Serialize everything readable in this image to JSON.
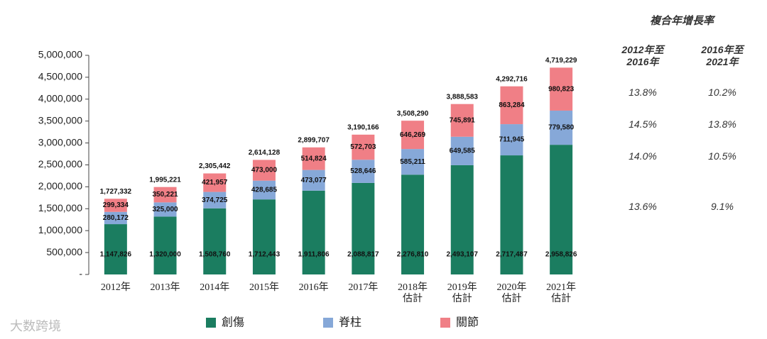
{
  "chart_data": {
    "type": "stacked_bar",
    "categories": [
      "2012年",
      "2013年",
      "2014年",
      "2015年",
      "2016年",
      "2017年",
      "2018年\n估計",
      "2019年\n估計",
      "2020年\n估計",
      "2021年\n估計"
    ],
    "series": [
      {
        "name": "創傷",
        "color": "#1b7d60",
        "values": [
          1147826,
          1320000,
          1508760,
          1712443,
          1911806,
          2088817,
          2276810,
          2493107,
          2717487,
          2958826
        ],
        "value_labels": [
          "1,147,826",
          "1,320,000",
          "1,508,760",
          "1,712,443",
          "1,911,806",
          "2,088,817",
          "2,276,810",
          "2,493,107",
          "2,717,487",
          "2,958,826"
        ]
      },
      {
        "name": "脊柱",
        "color": "#86a8d8",
        "values": [
          280172,
          325000,
          374725,
          428685,
          473077,
          528646,
          585211,
          649585,
          711945,
          779580
        ],
        "value_labels": [
          "280,172",
          "325,000",
          "374,725",
          "428,685",
          "473,077",
          "528,646",
          "585,211",
          "649,585",
          "711,945",
          "779,580"
        ]
      },
      {
        "name": "關節",
        "color": "#f07f86",
        "values": [
          299334,
          350221,
          421957,
          473000,
          514824,
          572703,
          646269,
          745891,
          863284,
          980823
        ],
        "value_labels": [
          "299,334",
          "350,221",
          "421,957",
          "473,000",
          "514,824",
          "572,703",
          "646,269",
          "745,891",
          "863,284",
          "980,823"
        ]
      }
    ],
    "total_labels": [
      "1,727,332",
      "1,995,221",
      "2,305,442",
      "2,614,128",
      "2,899,707",
      "3,190,166",
      "3,508,290",
      "3,888,583",
      "4,292,716",
      "4,719,229"
    ],
    "ylim": [
      0,
      5000000
    ],
    "yticks": [
      {
        "value": 0,
        "label": "-"
      },
      {
        "value": 500000,
        "label": "500,000"
      },
      {
        "value": 1000000,
        "label": "1,000,000"
      },
      {
        "value": 1500000,
        "label": "1,500,000"
      },
      {
        "value": 2000000,
        "label": "2,000,000"
      },
      {
        "value": 2500000,
        "label": "2,500,000"
      },
      {
        "value": 3000000,
        "label": "3,000,000"
      },
      {
        "value": 3500000,
        "label": "3,500,000"
      },
      {
        "value": 4000000,
        "label": "4,000,000"
      },
      {
        "value": 4500000,
        "label": "4,500,000"
      },
      {
        "value": 5000000,
        "label": "5,000,000"
      }
    ],
    "legend": "bottom"
  },
  "cagr_table": {
    "title": "複合年增長率",
    "columns": [
      "2012年至\n2016年",
      "2016年至\n2021年"
    ],
    "rows": [
      [
        "13.8%",
        "10.2%"
      ],
      [
        "14.5%",
        "13.8%"
      ],
      [
        "14.0%",
        "10.5%"
      ],
      [
        "13.6%",
        "9.1%"
      ]
    ]
  },
  "watermark": "大数跨境"
}
